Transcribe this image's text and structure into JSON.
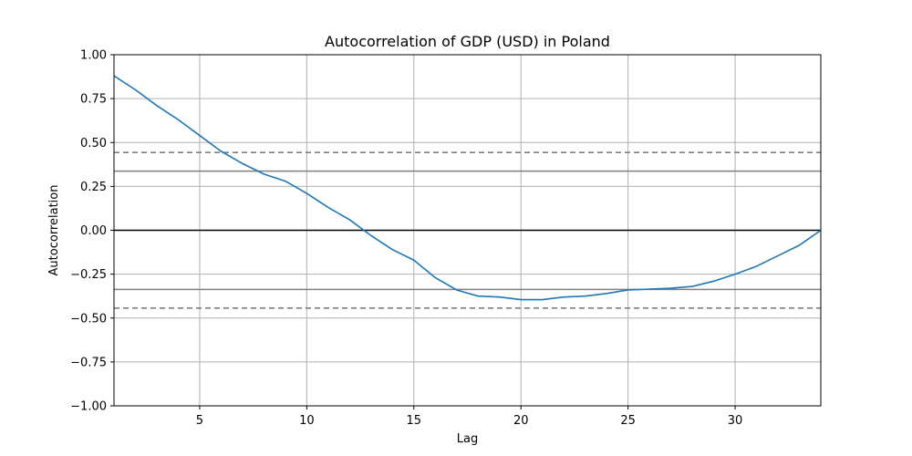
{
  "chart_data": {
    "type": "line",
    "title": "Autocorrelation of GDP (USD) in Poland",
    "xlabel": "Lag",
    "ylabel": "Autocorrelation",
    "xlim": [
      1,
      34
    ],
    "ylim": [
      -1.0,
      1.0
    ],
    "x_ticks": [
      5,
      10,
      15,
      20,
      25,
      30
    ],
    "y_ticks": [
      -1.0,
      -0.75,
      -0.5,
      -0.25,
      0.0,
      0.25,
      0.5,
      0.75,
      1.0
    ],
    "x_tick_labels": [
      "5",
      "10",
      "15",
      "20",
      "25",
      "30"
    ],
    "y_tick_labels": [
      "−1.00",
      "−0.75",
      "−0.50",
      "−0.25",
      "0.00",
      "0.25",
      "0.50",
      "0.75",
      "1.00"
    ],
    "grid": true,
    "reference_lines": {
      "zero": 0.0,
      "ci95": [
        0.337,
        -0.337
      ],
      "ci99": [
        0.443,
        -0.443
      ]
    },
    "series": [
      {
        "color": "#1f77b4",
        "x": [
          1,
          2,
          3,
          4,
          5,
          6,
          7,
          8,
          9,
          10,
          11,
          12,
          13,
          14,
          15,
          16,
          17,
          18,
          19,
          20,
          21,
          22,
          23,
          24,
          25,
          26,
          27,
          28,
          29,
          30,
          31,
          32,
          33,
          34
        ],
        "y": [
          0.88,
          0.8,
          0.71,
          0.63,
          0.54,
          0.45,
          0.38,
          0.32,
          0.28,
          0.21,
          0.13,
          0.06,
          -0.03,
          -0.11,
          -0.17,
          -0.27,
          -0.34,
          -0.375,
          -0.38,
          -0.395,
          -0.395,
          -0.38,
          -0.375,
          -0.36,
          -0.34,
          -0.335,
          -0.33,
          -0.32,
          -0.29,
          -0.25,
          -0.205,
          -0.145,
          -0.085,
          0.0
        ]
      }
    ]
  },
  "colors": {
    "line": "#1f77b4",
    "grid": "#b0b0b0",
    "zero_line": "#000000",
    "confidence_line": "#808080"
  }
}
